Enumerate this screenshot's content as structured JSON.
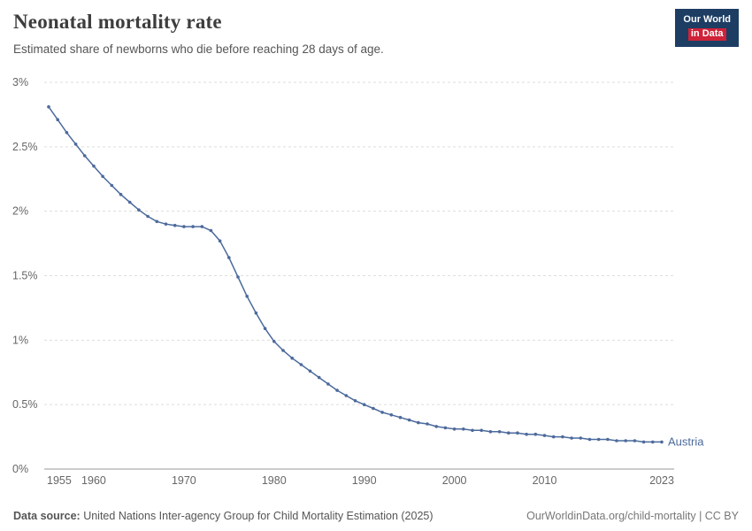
{
  "header": {
    "title": "Neonatal mortality rate",
    "subtitle": "Estimated share of newborns who die before reaching 28 days of age.",
    "logo": {
      "line1": "Our World",
      "line2": "in Data"
    }
  },
  "colors": {
    "series_line": "#4c6a9c",
    "logo_navy": "#1d3d63",
    "logo_red": "#cf2238",
    "gridline": "#dddddd",
    "axis": "#999999",
    "tick_label": "#666666"
  },
  "chart_data": {
    "type": "line",
    "title": "Neonatal mortality rate",
    "xlabel": "",
    "ylabel": "",
    "grid": true,
    "xlim": [
      1955,
      2023
    ],
    "ylim": [
      0,
      3
    ],
    "x_ticks": [
      1955,
      1960,
      1970,
      1980,
      1990,
      2000,
      2010,
      2023
    ],
    "y_ticks": [
      0,
      0.5,
      1,
      1.5,
      2,
      2.5,
      3
    ],
    "y_tick_labels": [
      "0%",
      "0.5%",
      "1%",
      "1.5%",
      "2%",
      "2.5%",
      "3%"
    ],
    "series": [
      {
        "name": "Austria",
        "color": "#4c6a9c",
        "x": [
          1955,
          1956,
          1957,
          1958,
          1959,
          1960,
          1961,
          1962,
          1963,
          1964,
          1965,
          1966,
          1967,
          1968,
          1969,
          1970,
          1971,
          1972,
          1973,
          1974,
          1975,
          1976,
          1977,
          1978,
          1979,
          1980,
          1981,
          1982,
          1983,
          1984,
          1985,
          1986,
          1987,
          1988,
          1989,
          1990,
          1991,
          1992,
          1993,
          1994,
          1995,
          1996,
          1997,
          1998,
          1999,
          2000,
          2001,
          2002,
          2003,
          2004,
          2005,
          2006,
          2007,
          2008,
          2009,
          2010,
          2011,
          2012,
          2013,
          2014,
          2015,
          2016,
          2017,
          2018,
          2019,
          2020,
          2021,
          2022,
          2023
        ],
        "values": [
          2.81,
          2.71,
          2.61,
          2.52,
          2.43,
          2.35,
          2.27,
          2.2,
          2.13,
          2.07,
          2.01,
          1.96,
          1.92,
          1.9,
          1.89,
          1.88,
          1.88,
          1.88,
          1.85,
          1.77,
          1.64,
          1.49,
          1.34,
          1.21,
          1.09,
          0.99,
          0.92,
          0.86,
          0.81,
          0.76,
          0.71,
          0.66,
          0.61,
          0.57,
          0.53,
          0.5,
          0.47,
          0.44,
          0.42,
          0.4,
          0.38,
          0.36,
          0.35,
          0.33,
          0.32,
          0.31,
          0.31,
          0.3,
          0.3,
          0.29,
          0.29,
          0.28,
          0.28,
          0.27,
          0.27,
          0.26,
          0.25,
          0.25,
          0.24,
          0.24,
          0.23,
          0.23,
          0.23,
          0.22,
          0.22,
          0.22,
          0.21,
          0.21,
          0.21
        ]
      }
    ],
    "end_label": "Austria"
  },
  "footer": {
    "source_label": "Data source:",
    "source_text": " United Nations Inter-agency Group for Child Mortality Estimation (2025)",
    "right_text": "OurWorldinData.org/child-mortality | CC BY"
  }
}
